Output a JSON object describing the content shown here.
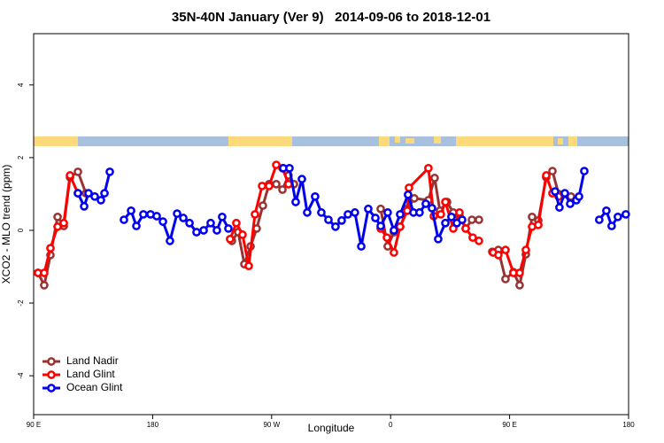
{
  "chart_data": {
    "type": "line",
    "title": "35N-40N January (Ver 9)   2014-09-06 to 2018-12-01",
    "x_label": "Longitude",
    "y_label": "XCO2 - MLO trend (ppm)",
    "xlim": [
      90,
      540
    ],
    "xticks": [
      {
        "value": 90,
        "label": "90 E"
      },
      {
        "value": 180,
        "label": "180"
      },
      {
        "value": 270,
        "label": "90 W"
      },
      {
        "value": 360,
        "label": "0"
      },
      {
        "value": 450,
        "label": "90 E"
      },
      {
        "value": 540,
        "label": "180"
      }
    ],
    "ylim": [
      -5.07,
      5.41
    ],
    "yticks": [
      -4,
      -2,
      0,
      2,
      4
    ],
    "grid": false,
    "legend": "bottom-left",
    "series": [
      {
        "name": "Land Nadir",
        "color": "#993333",
        "x": [
          93.3,
          98,
          102.7,
          108.1,
          112.8,
          117.5,
          123.5,
          129.5,
          null,
          240,
          244.7,
          249.4,
          254.1,
          258.7,
          263.4,
          268.1,
          273.5,
          278.2,
          282.8,
          286.9,
          null,
          352.5,
          357.8,
          362.5,
          367.2,
          372.6,
          377.9,
          388.6,
          393.3,
          397.3,
          402.7,
          407.4,
          412.1,
          416.8,
          421.5,
          426.8,
          null,
          436.9,
          441.5,
          446.9,
          452.9,
          457.6,
          462.3,
          467,
          471.7,
          477.7,
          482.4,
          487.1,
          491.8,
          496.4
        ],
        "values": [
          -1.17,
          -1.51,
          -0.68,
          0.37,
          0.12,
          1.46,
          1.61,
          1.02,
          null,
          -0.29,
          -0.05,
          -0.93,
          -0.44,
          0.05,
          0.68,
          1.27,
          1.27,
          1.12,
          1.51,
          1.27,
          null,
          0.59,
          -0.44,
          -0.05,
          0.1,
          0.59,
          0.88,
          0.83,
          1.44,
          0.54,
          0.78,
          0.49,
          0.39,
          0.05,
          0.29,
          0.29,
          null,
          -0.59,
          -0.54,
          -1.34,
          -1.15,
          -1.51,
          -0.66,
          0.37,
          0.27,
          1.46,
          1.63,
          1.0,
          1.0,
          0.93
        ]
      },
      {
        "name": "Land Glint",
        "color": "#ff0000",
        "x": [
          93.3,
          98,
          102.7,
          108.1,
          112.8,
          117.5,
          123.5,
          null,
          238.6,
          243.3,
          248,
          252.7,
          257.4,
          262.8,
          268.1,
          273.5,
          278.2,
          282.8,
          null,
          352.5,
          357.2,
          362.5,
          367.2,
          372.6,
          373.9,
          388.6,
          392.7,
          398,
          401.4,
          407.4,
          412.1,
          416.8,
          422.1,
          426.8,
          null,
          437.5,
          441.5,
          446.9,
          452.9,
          457.6,
          462.3,
          467,
          471.7,
          477.7,
          482.4,
          487.1
        ],
        "values": [
          -1.17,
          -1.17,
          -0.49,
          0.1,
          0.2,
          1.51,
          1.02,
          null,
          -0.24,
          0.2,
          -0.12,
          -0.98,
          0.44,
          1.22,
          1.22,
          1.8,
          1.71,
          1.27,
          null,
          0.05,
          -0.2,
          -0.61,
          0.1,
          0.54,
          1.17,
          1.71,
          0.39,
          0.44,
          0.78,
          0.05,
          0.49,
          0.05,
          -0.2,
          -0.29,
          null,
          -0.61,
          -0.68,
          -0.54,
          -1.17,
          -1.17,
          -0.54,
          0.1,
          0.15,
          1.51,
          1.02,
          0.93
        ]
      },
      {
        "name": "Ocean Glint",
        "color": "#0000ee",
        "x": [
          123.5,
          128.2,
          131.5,
          136.2,
          140.9,
          143.6,
          147.6,
          null,
          158.3,
          163.7,
          167.7,
          173,
          178.4,
          183.1,
          187.8,
          193.1,
          198.5,
          203.2,
          207.9,
          213.2,
          218.6,
          223.9,
          228.6,
          232.6,
          237.3,
          null,
          278.8,
          283.5,
          288.2,
          292.9,
          296.9,
          302.9,
          307.6,
          313,
          318.3,
          323,
          327.7,
          333,
          337.8,
          343.1,
          348.5,
          352.5,
          357.8,
          362.5,
          367.2,
          373.2,
          377.3,
          381.9,
          386.6,
          391.3,
          396,
          401.4,
          406,
          410.1,
          414.1,
          null,
          484.4,
          487.7,
          491.8,
          495.8,
          500.5,
          502.5,
          506.5,
          null,
          517.8,
          523.2,
          527.2,
          531.9,
          537.9
        ],
        "values": [
          1.02,
          0.66,
          1.02,
          0.93,
          0.83,
          1.02,
          1.61,
          null,
          0.29,
          0.54,
          0.12,
          0.44,
          0.44,
          0.39,
          0.24,
          -0.29,
          0.46,
          0.34,
          0.2,
          -0.05,
          0,
          0.2,
          0,
          0.37,
          0.05,
          null,
          1.71,
          1.71,
          0.78,
          1.41,
          0.49,
          0.93,
          0.49,
          0.29,
          0.1,
          0.27,
          0.44,
          0.49,
          -0.44,
          0.59,
          0.34,
          0.12,
          0.49,
          0,
          0.44,
          0.98,
          0.49,
          0.49,
          0.73,
          0.61,
          -0.24,
          0.2,
          0.37,
          0.2,
          0.29,
          null,
          1.07,
          0.63,
          1.02,
          0.73,
          0.83,
          0.93,
          1.63,
          null,
          0.29,
          0.54,
          0.12,
          0.37,
          0.44
        ]
      }
    ]
  }
}
